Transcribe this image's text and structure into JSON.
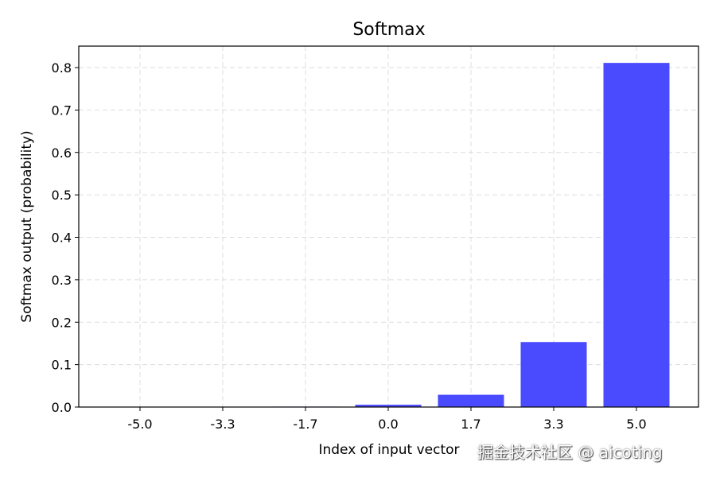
{
  "chart_data": {
    "type": "bar",
    "title": "Softmax",
    "xlabel": "Index of input vector",
    "ylabel": "Softmax output (probability)",
    "categories": [
      "-5.0",
      "-3.3",
      "-1.7",
      "0.0",
      "1.7",
      "3.3",
      "5.0"
    ],
    "values": [
      3.68e-05,
      0.000195,
      0.00103,
      0.00546,
      0.0289,
      0.1532,
      0.811
    ],
    "ylim": [
      0,
      0.85
    ],
    "yticks": [
      "0.0",
      "0.1",
      "0.2",
      "0.3",
      "0.4",
      "0.5",
      "0.6",
      "0.7",
      "0.8"
    ],
    "grid": true,
    "bar_color": "#4a4aff"
  },
  "watermark": "掘金技术社区 @ aicoting"
}
